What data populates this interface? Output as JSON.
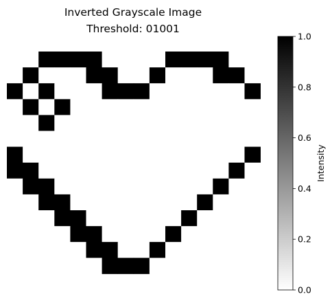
{
  "chart_data": {
    "type": "heatmap",
    "title_lines": [
      "Inverted Grayscale Image",
      "Threshold: 01001"
    ],
    "colormap": "gray_r",
    "colorbar": {
      "label": "Intensity",
      "range": [
        0.0,
        1.0
      ],
      "ticks": [
        0.0,
        0.2,
        0.4,
        0.6,
        0.8,
        1.0
      ],
      "tick_labels": [
        "0.0",
        "0.2",
        "0.4",
        "0.6",
        "0.8",
        "1.0"
      ]
    },
    "axes_visible": false,
    "grid": [
      [
        0,
        0,
        1,
        1,
        1,
        1,
        0,
        0,
        0,
        0,
        1,
        1,
        1,
        1,
        0,
        0
      ],
      [
        0,
        1,
        0,
        0,
        0,
        1,
        1,
        0,
        0,
        1,
        0,
        0,
        0,
        1,
        1,
        0
      ],
      [
        1,
        0,
        1,
        0,
        0,
        0,
        1,
        1,
        1,
        0,
        0,
        0,
        0,
        0,
        0,
        1
      ],
      [
        0,
        1,
        0,
        1,
        0,
        0,
        0,
        0,
        0,
        0,
        0,
        0,
        0,
        0,
        0,
        0
      ],
      [
        0,
        0,
        1,
        0,
        0,
        0,
        0,
        0,
        0,
        0,
        0,
        0,
        0,
        0,
        0,
        0
      ],
      [
        0,
        0,
        0,
        0,
        0,
        0,
        0,
        0,
        0,
        0,
        0,
        0,
        0,
        0,
        0,
        0
      ],
      [
        1,
        0,
        0,
        0,
        0,
        0,
        0,
        0,
        0,
        0,
        0,
        0,
        0,
        0,
        0,
        1
      ],
      [
        1,
        1,
        0,
        0,
        0,
        0,
        0,
        0,
        0,
        0,
        0,
        0,
        0,
        0,
        1,
        0
      ],
      [
        0,
        1,
        1,
        0,
        0,
        0,
        0,
        0,
        0,
        0,
        0,
        0,
        0,
        1,
        0,
        0
      ],
      [
        0,
        0,
        1,
        1,
        0,
        0,
        0,
        0,
        0,
        0,
        0,
        0,
        1,
        0,
        0,
        0
      ],
      [
        0,
        0,
        0,
        1,
        1,
        0,
        0,
        0,
        0,
        0,
        0,
        1,
        0,
        0,
        0,
        0
      ],
      [
        0,
        0,
        0,
        0,
        1,
        1,
        0,
        0,
        0,
        0,
        1,
        0,
        0,
        0,
        0,
        0
      ],
      [
        0,
        0,
        0,
        0,
        0,
        1,
        1,
        0,
        0,
        1,
        0,
        0,
        0,
        0,
        0,
        0
      ],
      [
        0,
        0,
        0,
        0,
        0,
        0,
        1,
        1,
        1,
        0,
        0,
        0,
        0,
        0,
        0,
        0
      ]
    ]
  }
}
